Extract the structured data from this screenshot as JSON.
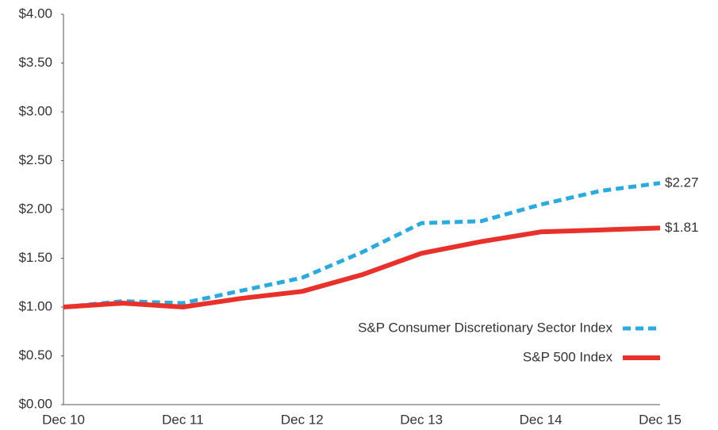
{
  "chart_data": {
    "type": "line",
    "categories": [
      "Dec 10",
      null,
      "Dec 11",
      null,
      "Dec 12",
      null,
      "Dec 13",
      null,
      "Dec 14",
      null,
      "Dec 15"
    ],
    "series": [
      {
        "name": "S&P Consumer Discretionary Sector Index",
        "color": "#29abe2",
        "dash": true,
        "values": [
          1.0,
          1.06,
          1.04,
          1.17,
          1.3,
          1.56,
          1.86,
          1.88,
          2.05,
          2.19,
          2.27
        ],
        "value_labels": [
          null,
          null,
          null,
          null,
          null,
          null,
          null,
          null,
          null,
          null,
          "$2.27"
        ]
      },
      {
        "name": "S&P 500 Index",
        "color": "#e8312a",
        "dash": false,
        "values": [
          1.0,
          1.04,
          1.0,
          1.09,
          1.16,
          1.33,
          1.55,
          1.67,
          1.77,
          1.79,
          1.81
        ],
        "value_labels": [
          null,
          null,
          null,
          null,
          null,
          null,
          null,
          null,
          null,
          null,
          "$1.81"
        ]
      }
    ],
    "ylim": [
      0,
      4
    ],
    "yticks": [
      {
        "value": 0,
        "label": "$0.00"
      },
      {
        "value": 0.5,
        "label": "$0.50"
      },
      {
        "value": 1,
        "label": "$1.00"
      },
      {
        "value": 1.5,
        "label": "$1.50"
      },
      {
        "value": 2,
        "label": "$2.00"
      },
      {
        "value": 2.5,
        "label": "$2.50"
      },
      {
        "value": 3,
        "label": "$3.00"
      },
      {
        "value": 3.5,
        "label": "$3.50"
      },
      {
        "value": 4,
        "label": "$4.00"
      }
    ],
    "grid": false,
    "legend": "lower right"
  }
}
